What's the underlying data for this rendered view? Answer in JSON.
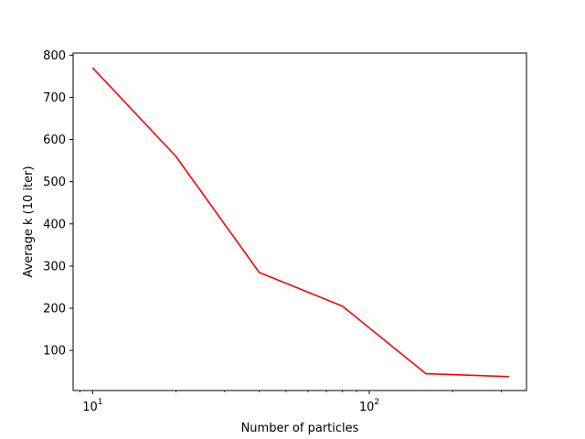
{
  "chart_data": {
    "type": "line",
    "title": "",
    "xlabel": "Number of particles",
    "ylabel": "Average k (10 iter)",
    "xscale": "log",
    "xlim": [
      8.5,
      370
    ],
    "ylim": [
      5,
      805
    ],
    "grid": false,
    "legend": "none",
    "x_ticks": [
      {
        "value": 10,
        "base": "10",
        "exp": "1"
      },
      {
        "value": 100,
        "base": "10",
        "exp": "2"
      }
    ],
    "y_ticks": [
      100,
      200,
      300,
      400,
      500,
      600,
      700,
      800
    ],
    "series": [
      {
        "color": "#ff0000",
        "x": [
          10,
          20,
          40,
          80,
          160,
          320
        ],
        "y": [
          770,
          560,
          285,
          205,
          45,
          38
        ]
      }
    ]
  }
}
